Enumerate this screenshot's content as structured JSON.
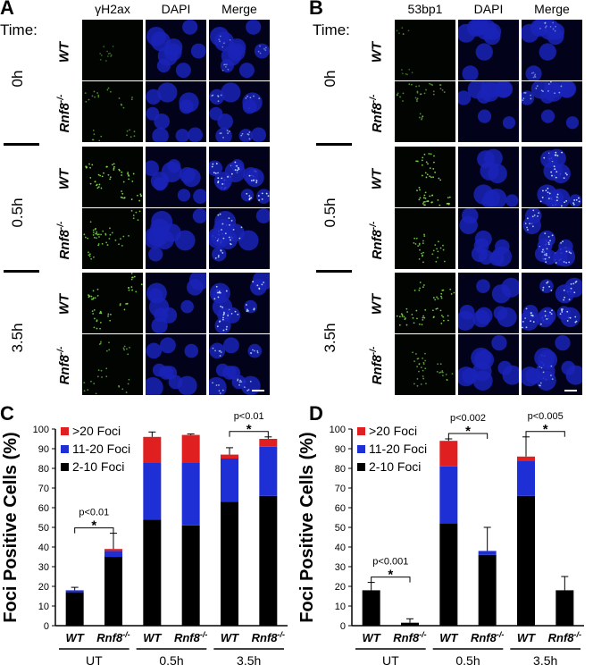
{
  "panel_a": {
    "letter": "A",
    "time_label": "Time:",
    "columns": [
      "γH2ax",
      "DAPI",
      "Merge"
    ],
    "time_groups": [
      "0h",
      "0.5h",
      "3.5h"
    ],
    "genotypes": [
      "WT",
      "Rnf8-/-"
    ]
  },
  "panel_b": {
    "letter": "B",
    "time_label": "Time:",
    "columns": [
      "53bp1",
      "DAPI",
      "Merge"
    ],
    "time_groups": [
      "0h",
      "0.5h",
      "3.5h"
    ],
    "genotypes": [
      "WT",
      "Rnf8-/-"
    ]
  },
  "chart_data": [
    {
      "panel": "C",
      "type": "bar",
      "stacked": true,
      "ylabel": "Foci Positive Cells (%)",
      "ylim": [
        0,
        100
      ],
      "yticks": [
        0,
        10,
        20,
        30,
        40,
        50,
        60,
        70,
        80,
        90,
        100
      ],
      "categories": [
        "WT",
        "Rnf8-/-",
        "WT",
        "Rnf8-/-",
        "WT",
        "Rnf8-/-"
      ],
      "groups": [
        "UT",
        "0.5h",
        "3.5h"
      ],
      "legend": [
        ">20 Foci",
        "11-20 Foci",
        "2-10 Foci"
      ],
      "series": [
        {
          "name": "2-10 Foci",
          "color": "#000000",
          "values": [
            17,
            35,
            54,
            51,
            63,
            66
          ]
        },
        {
          "name": "11-20 Foci",
          "color": "#1f2fd6",
          "values": [
            1,
            3,
            29,
            32,
            22,
            25
          ]
        },
        {
          "name": ">20 Foci",
          "color": "#e02020",
          "values": [
            0,
            1,
            13,
            14,
            2,
            4
          ]
        }
      ],
      "error": [
        1.5,
        8,
        2.5,
        0.5,
        3.5,
        1
      ],
      "annotations": [
        {
          "text": "p<0.01",
          "between": [
            0,
            1
          ]
        },
        {
          "text": "p<0.01",
          "between": [
            4,
            5
          ]
        }
      ]
    },
    {
      "panel": "D",
      "type": "bar",
      "stacked": true,
      "ylabel": "Foci Positive Cells (%)",
      "ylim": [
        0,
        100
      ],
      "yticks": [
        0,
        10,
        20,
        30,
        40,
        50,
        60,
        70,
        80,
        90,
        100
      ],
      "categories": [
        "WT",
        "Rnf8-/-",
        "WT",
        "Rnf8-/-",
        "WT",
        "Rnf8-/-"
      ],
      "groups": [
        "UT",
        "0.5h",
        "3.5h"
      ],
      "legend": [
        ">20 Foci",
        "11-20 Foci",
        "2-10 Foci"
      ],
      "series": [
        {
          "name": "2-10 Foci",
          "color": "#000000",
          "values": [
            18,
            1.5,
            52,
            36,
            66,
            18
          ]
        },
        {
          "name": "11-20 Foci",
          "color": "#1f2fd6",
          "values": [
            0,
            0,
            29,
            2,
            18,
            0
          ]
        },
        {
          "name": ">20 Foci",
          "color": "#e02020",
          "values": [
            0,
            0,
            13,
            0,
            2,
            0
          ]
        }
      ],
      "error": [
        4,
        2,
        1,
        12,
        10,
        7
      ],
      "annotations": [
        {
          "text": "p<0.001",
          "between": [
            0,
            1
          ]
        },
        {
          "text": "p<0.002",
          "between": [
            2,
            3
          ]
        },
        {
          "text": "p<0.005",
          "between": [
            4,
            5
          ]
        }
      ]
    }
  ],
  "letters": {
    "c": "C",
    "d": "D"
  },
  "star": "*"
}
